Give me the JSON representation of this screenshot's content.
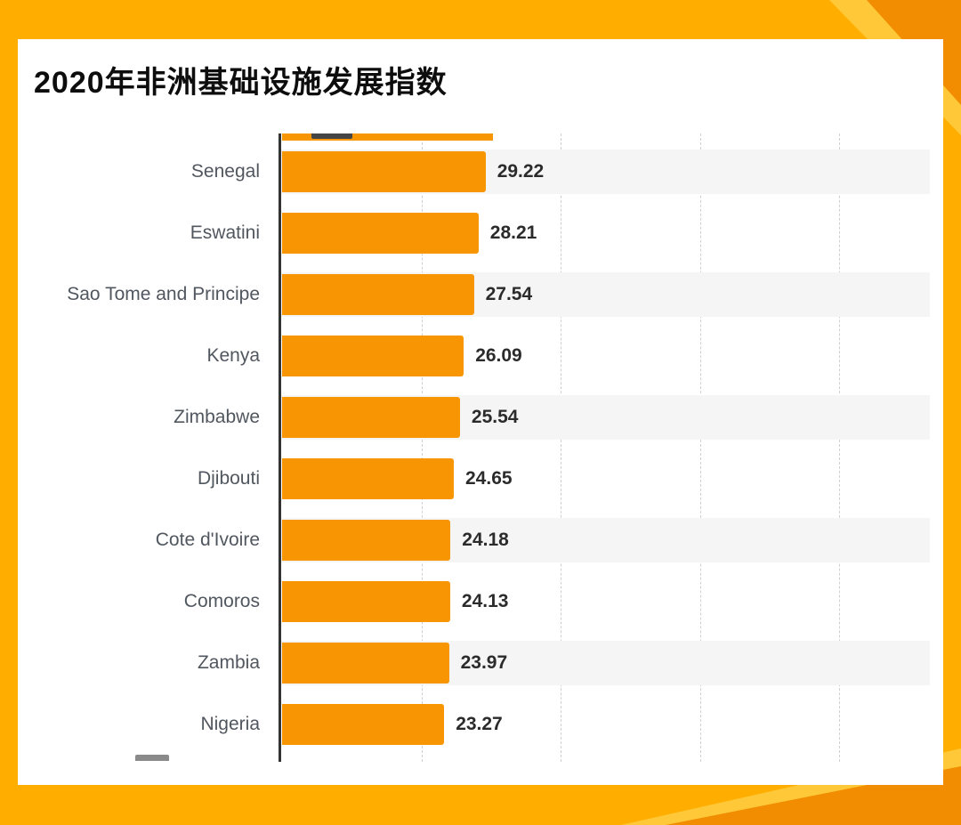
{
  "page": {
    "background_color": "#FFAE00",
    "accent_light": "#FFC838",
    "accent_dark": "#F28C00",
    "card_color": "#FFFFFF"
  },
  "chart_data": {
    "type": "bar",
    "orientation": "horizontal",
    "title": "2020年非洲基础设施发展指数",
    "xlabel": "",
    "ylabel": "",
    "categories": [
      "Senegal",
      "Eswatini",
      "Sao Tome and Principe",
      "Kenya",
      "Zimbabwe",
      "Djibouti",
      "Cote d'Ivoire",
      "Comoros",
      "Zambia",
      "Nigeria"
    ],
    "values": [
      29.22,
      28.21,
      27.54,
      26.09,
      25.54,
      24.65,
      24.18,
      24.13,
      23.97,
      23.27
    ],
    "xlim": [
      0,
      93
    ],
    "gridlines": [
      20,
      40,
      60,
      80
    ],
    "grid_style": "dashed-vertical",
    "legend": "none",
    "bar_color": "#F79502",
    "row_stripe_color": "#F5F5F5",
    "clipped_partial_bar_top_value": 30.3
  }
}
